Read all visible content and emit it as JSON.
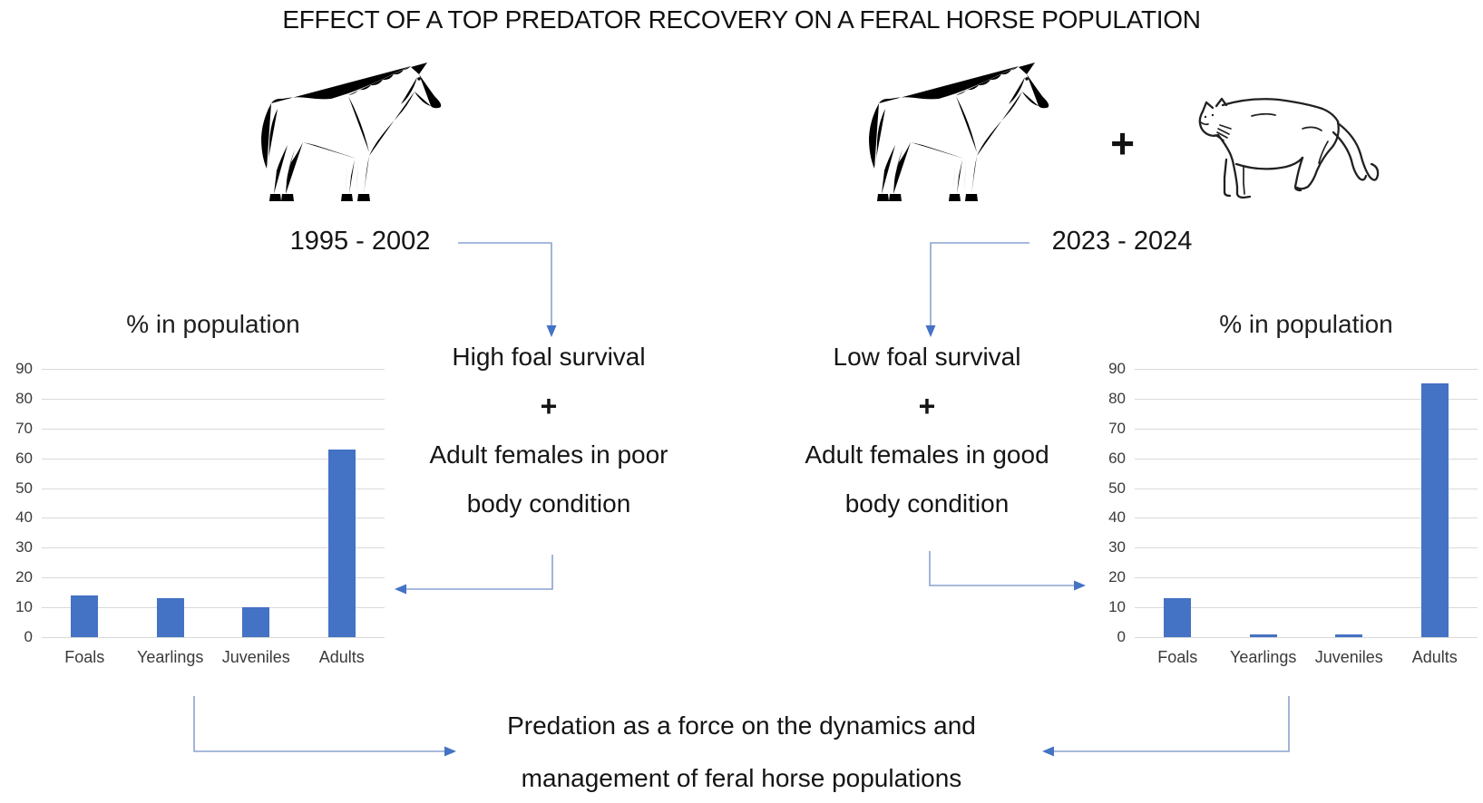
{
  "title": "EFFECT OF A TOP PREDATOR RECOVERY ON A FERAL HORSE POPULATION",
  "left_panel": {
    "period": "1995 - 2002",
    "condition_line1": "High foal survival",
    "plus": "+",
    "condition_line2": "Adult females in poor",
    "condition_line3": "body condition"
  },
  "right_panel": {
    "period": "2023 - 2024",
    "plus_between_animals": "+",
    "condition_line1": "Low foal survival",
    "plus": "+",
    "condition_line2": "Adult females in good",
    "condition_line3": "body condition"
  },
  "bottom": {
    "line1": "Predation as a force on the dynamics and",
    "line2": "management of feral horse populations"
  },
  "icons": {
    "left_animal": "horse-icon",
    "right_animal_1": "horse-icon",
    "right_animal_2": "cougar-icon"
  },
  "colors": {
    "bar": "#4472C4",
    "arrow_line": "#8ba3cf",
    "arrow_head": "#4472C4",
    "gridline": "#d9d9d9"
  },
  "chart_data": [
    {
      "type": "bar",
      "title": "% in population",
      "categories": [
        "Foals",
        "Yearlings",
        "Juveniles",
        "Adults"
      ],
      "values": [
        14,
        13,
        10,
        63
      ],
      "xlabel": "",
      "ylabel": "",
      "ylim": [
        0,
        90
      ],
      "yticks": [
        0,
        10,
        20,
        30,
        40,
        50,
        60,
        70,
        80,
        90
      ],
      "grid": true,
      "legend": false,
      "bar_color": "#4472C4",
      "position": "left"
    },
    {
      "type": "bar",
      "title": "% in population",
      "categories": [
        "Foals",
        "Yearlings",
        "Juveniles",
        "Adults"
      ],
      "values": [
        13,
        1,
        1,
        85
      ],
      "xlabel": "",
      "ylabel": "",
      "ylim": [
        0,
        90
      ],
      "yticks": [
        0,
        10,
        20,
        30,
        40,
        50,
        60,
        70,
        80,
        90
      ],
      "grid": true,
      "legend": false,
      "bar_color": "#4472C4",
      "position": "right"
    }
  ]
}
